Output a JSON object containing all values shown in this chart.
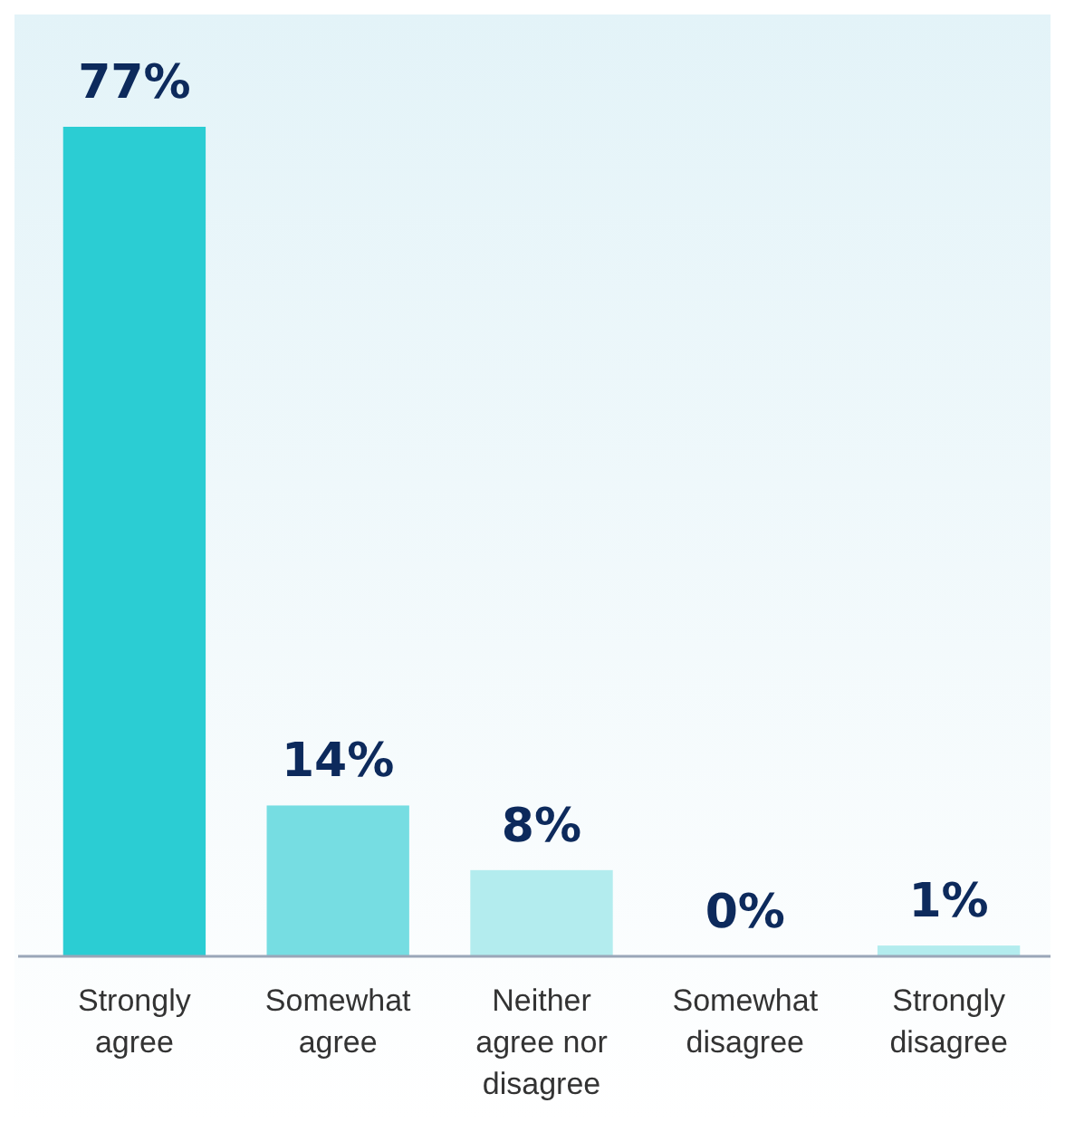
{
  "chart_data": {
    "type": "bar",
    "categories": [
      "Strongly agree",
      "Somewhat agree",
      "Neither agree nor disagree",
      "Somewhat disagree",
      "Strongly disagree"
    ],
    "values": [
      77,
      14,
      8,
      0,
      1
    ],
    "value_labels": [
      "77%",
      "14%",
      "8%",
      "0%",
      "1%"
    ],
    "colors": [
      "#2bcdd3",
      "#76dde2",
      "#b3ecee",
      "#b3ecee",
      "#b3ecee"
    ]
  }
}
